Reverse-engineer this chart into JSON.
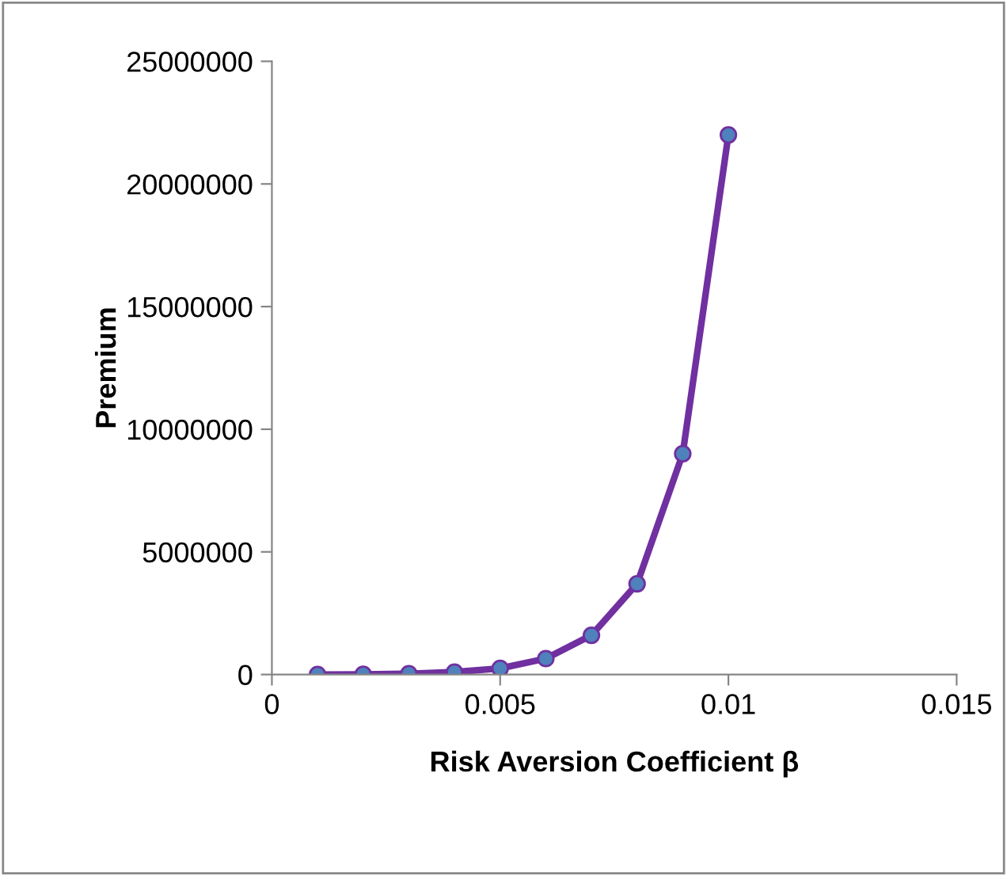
{
  "chart_data": {
    "type": "line",
    "xlabel": "Risk Aversion Coefficient β",
    "ylabel": "Premium",
    "x": [
      0.001,
      0.002,
      0.003,
      0.004,
      0.005,
      0.006,
      0.007,
      0.008,
      0.009,
      0.01
    ],
    "series": [
      {
        "color": "#7030a0",
        "values": [
          0,
          10000,
          30000,
          100000,
          250000,
          650000,
          1600000,
          3700000,
          9000000,
          22000000
        ]
      }
    ],
    "marker": "circle",
    "line_style": "solid",
    "grid": false,
    "legend": false,
    "xlim": [
      0,
      0.015
    ],
    "xticks": [
      0,
      0.005,
      0.01,
      0.015
    ],
    "ylim": [
      0,
      25000000
    ],
    "yticks": [
      0,
      5000000,
      10000000,
      15000000,
      20000000,
      25000000
    ]
  }
}
